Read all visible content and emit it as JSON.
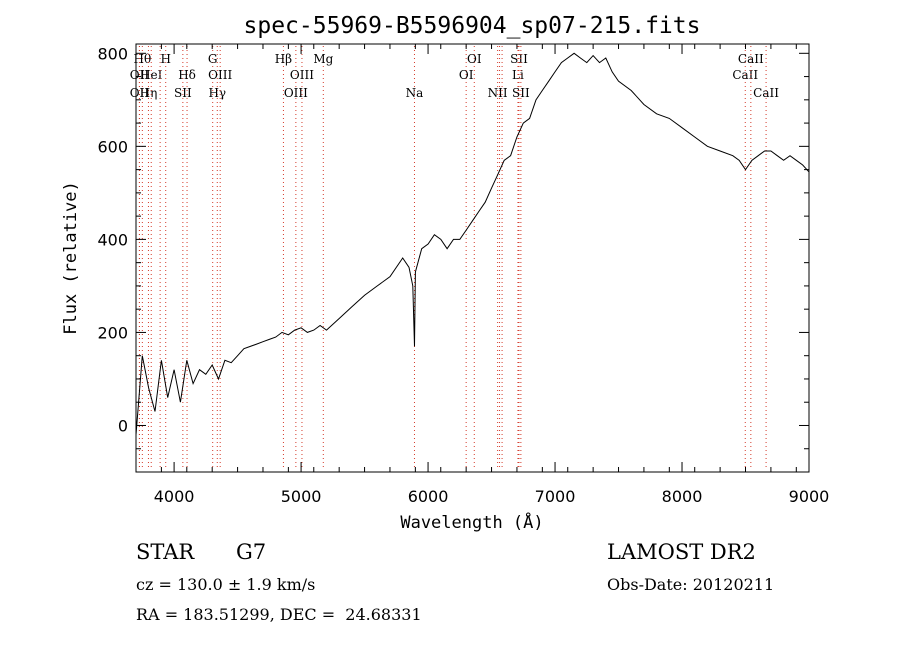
{
  "chart_data": {
    "type": "line",
    "title": "spec-55969-B5596904_sp07-215.fits",
    "xlabel": "Wavelength (Å)",
    "ylabel": "Flux (relative)",
    "xlim": [
      3700,
      9000
    ],
    "ylim": [
      -100,
      820
    ],
    "xticks": [
      4000,
      5000,
      6000,
      7000,
      8000,
      9000
    ],
    "yticks": [
      0,
      200,
      400,
      600,
      800
    ],
    "grid": false,
    "series": [
      {
        "x": [
          3700,
          3750,
          3800,
          3850,
          3900,
          3950,
          4000,
          4050,
          4100,
          4150,
          4200,
          4250,
          4300,
          4350,
          4400,
          4450,
          4500,
          4550,
          4600,
          4650,
          4700,
          4750,
          4800,
          4850,
          4900,
          4950,
          5000,
          5050,
          5100,
          5150,
          5200,
          5300,
          5400,
          5500,
          5600,
          5700,
          5800,
          5850,
          5880,
          5893,
          5900,
          5950,
          6000,
          6050,
          6100,
          6150,
          6200,
          6250,
          6300,
          6350,
          6400,
          6450,
          6500,
          6550,
          6600,
          6650,
          6700,
          6750,
          6800,
          6850,
          6900,
          6950,
          7000,
          7050,
          7100,
          7150,
          7200,
          7250,
          7300,
          7350,
          7400,
          7450,
          7500,
          7600,
          7700,
          7800,
          7900,
          8000,
          8100,
          8200,
          8300,
          8400,
          8450,
          8500,
          8550,
          8600,
          8650,
          8700,
          8750,
          8800,
          8850,
          8900,
          8950,
          9000
        ],
        "y": [
          -20,
          150,
          80,
          30,
          140,
          60,
          120,
          50,
          140,
          90,
          120,
          110,
          130,
          100,
          140,
          135,
          150,
          165,
          170,
          175,
          180,
          185,
          190,
          200,
          195,
          205,
          210,
          200,
          205,
          215,
          205,
          230,
          255,
          280,
          300,
          320,
          360,
          340,
          300,
          170,
          330,
          380,
          390,
          410,
          400,
          380,
          400,
          400,
          420,
          440,
          460,
          480,
          510,
          540,
          570,
          580,
          620,
          650,
          660,
          700,
          720,
          740,
          760,
          780,
          790,
          800,
          790,
          780,
          795,
          780,
          790,
          760,
          740,
          720,
          690,
          670,
          660,
          640,
          620,
          600,
          590,
          580,
          570,
          550,
          570,
          580,
          590,
          590,
          580,
          570,
          580,
          570,
          560,
          545
        ]
      }
    ],
    "lines": [
      {
        "x": 3750,
        "label": "Hθ",
        "row": 1
      },
      {
        "x": 3727,
        "label": "OII",
        "row": 2
      },
      {
        "x": 3727,
        "label": "OII",
        "row": 3
      },
      {
        "x": 3798,
        "label": "Hη",
        "row": 3
      },
      {
        "x": 3820,
        "label": "HeI",
        "row": 2
      },
      {
        "x": 3890,
        "label": "",
        "row": 0
      },
      {
        "x": 3934,
        "label": "H",
        "row": 1
      },
      {
        "x": 4069,
        "label": "SII",
        "row": 3
      },
      {
        "x": 4102,
        "label": "Hδ",
        "row": 2
      },
      {
        "x": 4304,
        "label": "G",
        "row": 1
      },
      {
        "x": 4340,
        "label": "Hγ",
        "row": 3
      },
      {
        "x": 4363,
        "label": "OIII",
        "row": 2
      },
      {
        "x": 4861,
        "label": "Hβ",
        "row": 1
      },
      {
        "x": 4959,
        "label": "OIII",
        "row": 3
      },
      {
        "x": 5007,
        "label": "OIII",
        "row": 2
      },
      {
        "x": 5175,
        "label": "Mg",
        "row": 1
      },
      {
        "x": 5893,
        "label": "Na",
        "row": 3
      },
      {
        "x": 6300,
        "label": "OI",
        "row": 2
      },
      {
        "x": 6364,
        "label": "OI",
        "row": 1
      },
      {
        "x": 6548,
        "label": "NII",
        "row": 3
      },
      {
        "x": 6563,
        "label": "",
        "row": 0
      },
      {
        "x": 6583,
        "label": "",
        "row": 0
      },
      {
        "x": 6708,
        "label": "Li",
        "row": 2
      },
      {
        "x": 6716,
        "label": "SII",
        "row": 1
      },
      {
        "x": 6731,
        "label": "SII",
        "row": 3
      },
      {
        "x": 8498,
        "label": "CaII",
        "row": 2
      },
      {
        "x": 8542,
        "label": "CaII",
        "row": 1
      },
      {
        "x": 8662,
        "label": "CaII",
        "row": 3
      }
    ]
  },
  "info": {
    "class": "STAR",
    "subclass": "G7",
    "survey": "LAMOST DR2",
    "cz": "cz = 130.0 ± 1.9 km/s",
    "obs_date": "Obs-Date: 20120211",
    "radec": "RA = 183.51299, DEC =  24.68331"
  }
}
